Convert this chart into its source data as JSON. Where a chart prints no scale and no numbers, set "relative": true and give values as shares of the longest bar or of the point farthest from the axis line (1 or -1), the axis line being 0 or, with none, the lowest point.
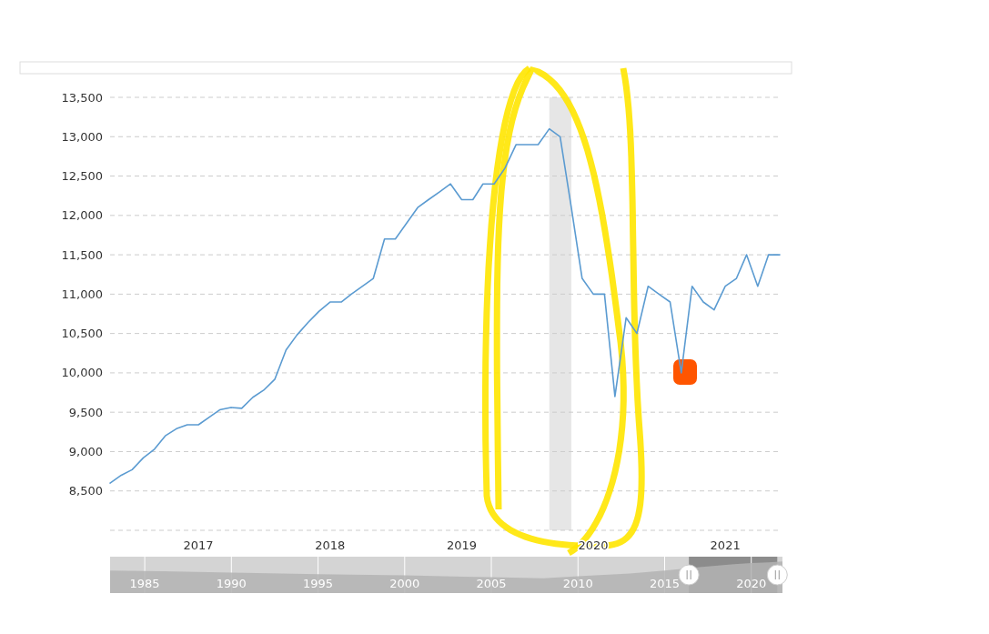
{
  "chart_data": [
    {
      "type": "line",
      "x": [
        "2016-05",
        "2016-06",
        "2016-07",
        "2016-08",
        "2016-09",
        "2016-10",
        "2016-11",
        "2016-12",
        "2017-01",
        "2017-02",
        "2017-03",
        "2017-04",
        "2017-05",
        "2017-06",
        "2017-07",
        "2017-08",
        "2017-09",
        "2017-10",
        "2017-11",
        "2017-12",
        "2018-01",
        "2018-02",
        "2018-03",
        "2018-04",
        "2018-05",
        "2018-06",
        "2018-07",
        "2018-08",
        "2018-09",
        "2018-10",
        "2018-11",
        "2018-12",
        "2019-01",
        "2019-02",
        "2019-03",
        "2019-04",
        "2019-05",
        "2019-06",
        "2019-07",
        "2019-08",
        "2019-09",
        "2019-10",
        "2019-11",
        "2019-12",
        "2020-01",
        "2020-02",
        "2020-03",
        "2020-04",
        "2020-05",
        "2020-06",
        "2020-07",
        "2020-08",
        "2020-09",
        "2020-10",
        "2020-11",
        "2020-12",
        "2021-01",
        "2021-02",
        "2021-03",
        "2021-04",
        "2021-05",
        "2021-06"
      ],
      "series": [
        {
          "color": "#5b9bd1",
          "values": [
            8600,
            8700,
            8770,
            8920,
            9030,
            9200,
            9290,
            9340,
            9340,
            9440,
            9530,
            9560,
            9550,
            9690,
            9780,
            9920,
            10290,
            10480,
            10640,
            10780,
            10900,
            10900,
            11000,
            11100,
            11200,
            11700,
            11700,
            11900,
            12100,
            12200,
            12300,
            12400,
            12200,
            12200,
            12400,
            12400,
            12600,
            12900,
            12900,
            12900,
            13100,
            13000,
            12100,
            11200,
            11000,
            11000,
            9700,
            10700,
            10500,
            11100,
            11000,
            10900,
            10000,
            11100,
            10900,
            10800,
            11100,
            11200,
            11500,
            11100,
            11500,
            11500
          ]
        }
      ],
      "xlim": [
        "2016-05",
        "2021-06"
      ],
      "xticks": [
        "2017",
        "2018",
        "2019",
        "2020",
        "2021"
      ],
      "ylim": [
        8000,
        13500
      ],
      "yticks": [
        {
          "value": 8000,
          "label": null
        },
        {
          "value": 8500,
          "label": "8,500"
        },
        {
          "value": 9000,
          "label": "9,000"
        },
        {
          "value": 9500,
          "label": "9,500"
        },
        {
          "value": 10000,
          "label": "10,000"
        },
        {
          "value": 10500,
          "label": "10,500"
        },
        {
          "value": 11000,
          "label": "11,000"
        },
        {
          "value": 11500,
          "label": "11,500"
        },
        {
          "value": 12000,
          "label": "12,000"
        },
        {
          "value": 12500,
          "label": "12,500"
        },
        {
          "value": 13000,
          "label": "13,000"
        },
        {
          "value": 13500,
          "label": "13,500"
        }
      ],
      "grid": "y",
      "bands": [
        {
          "axis": "x",
          "from": "2019-09",
          "to": "2019-11",
          "color": "#e6e6e6"
        }
      ]
    },
    {
      "type": "area",
      "relative": true,
      "x": [
        1983,
        1986,
        1990,
        1995,
        2000,
        2005,
        2008,
        2010,
        2013,
        2015,
        2017,
        2019,
        2020,
        2021,
        2021.8
      ],
      "series": [
        {
          "color": "#b3b3b3",
          "values": [
            0.71,
            0.69,
            0.65,
            0.6,
            0.56,
            0.5,
            0.47,
            0.53,
            0.62,
            0.71,
            0.82,
            0.91,
            0.95,
            0.97,
            1
          ]
        }
      ],
      "xlim": [
        1983,
        2021.8
      ],
      "xticks": [
        1985,
        1990,
        1995,
        2000,
        2005,
        2010,
        2015,
        2020
      ],
      "grid": "x",
      "tick_labels": "x",
      "bands": [
        {
          "axis": "x",
          "from": 2016.4,
          "to": 2021.5,
          "color": "#8c8c8c"
        }
      ]
    }
  ]
}
